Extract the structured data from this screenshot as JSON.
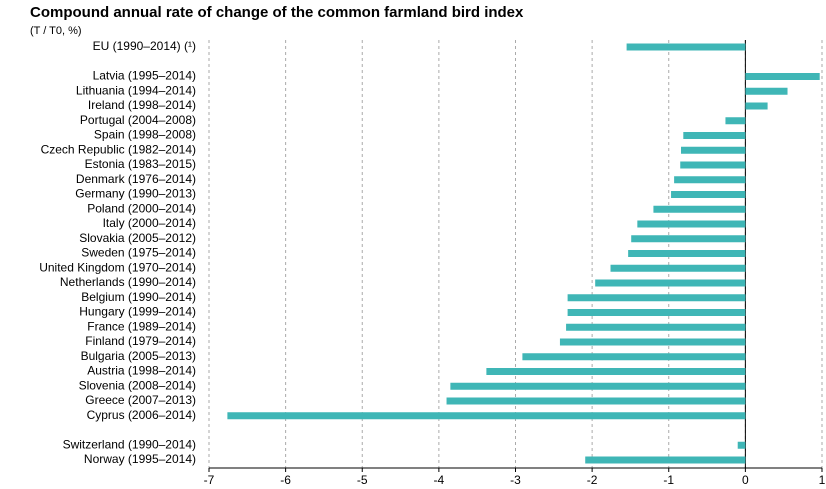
{
  "chart_data": {
    "type": "hbar",
    "title": "Compound annual rate of change of the common farmland bird index",
    "subtitle": "(T / T0, %)",
    "categories": [
      "EU (1990–2014)  (¹)",
      null,
      "Latvia (1995–2014)",
      "Lithuania (1994–2014)",
      "Ireland (1998–2014)",
      "Portugal (2004–2008)",
      "Spain (1998–2008)",
      "Czech Republic (1982–2014)",
      "Estonia (1983–2015)",
      "Denmark (1976–2014)",
      "Germany (1990–2013)",
      "Poland (2000–2014)",
      "Italy (2000–2014)",
      "Slovakia (2005–2012)",
      "Sweden (1975–2014)",
      "United Kingdom (1970–2014)",
      "Netherlands (1990–2014)",
      "Belgium (1990–2014)",
      "Hungary (1999–2014)",
      "France (1989–2014)",
      "Finland (1979–2014)",
      "Bulgaria (2005–2013)",
      "Austria (1998–2014)",
      "Slovenia (2008–2014)",
      "Greece (2007–2013)",
      "Cyprus (2006–2014)",
      null,
      "Switzerland (1990–2014)",
      "Norway (1995–2014)"
    ],
    "values": [
      -1.55,
      null,
      0.97,
      0.55,
      0.29,
      -0.26,
      -0.81,
      -0.84,
      -0.85,
      -0.93,
      -0.97,
      -1.2,
      -1.41,
      -1.49,
      -1.53,
      -1.76,
      -1.96,
      -2.32,
      -2.32,
      -2.34,
      -2.42,
      -2.91,
      -3.38,
      -3.85,
      -3.9,
      -6.76,
      null,
      -0.1,
      -2.09
    ],
    "color": "#3fb6b6",
    "xlim": [
      -7,
      1
    ],
    "xticks": [
      -7,
      -6,
      -5,
      -4,
      -3,
      -2,
      -1,
      0,
      1
    ],
    "grid": true
  }
}
